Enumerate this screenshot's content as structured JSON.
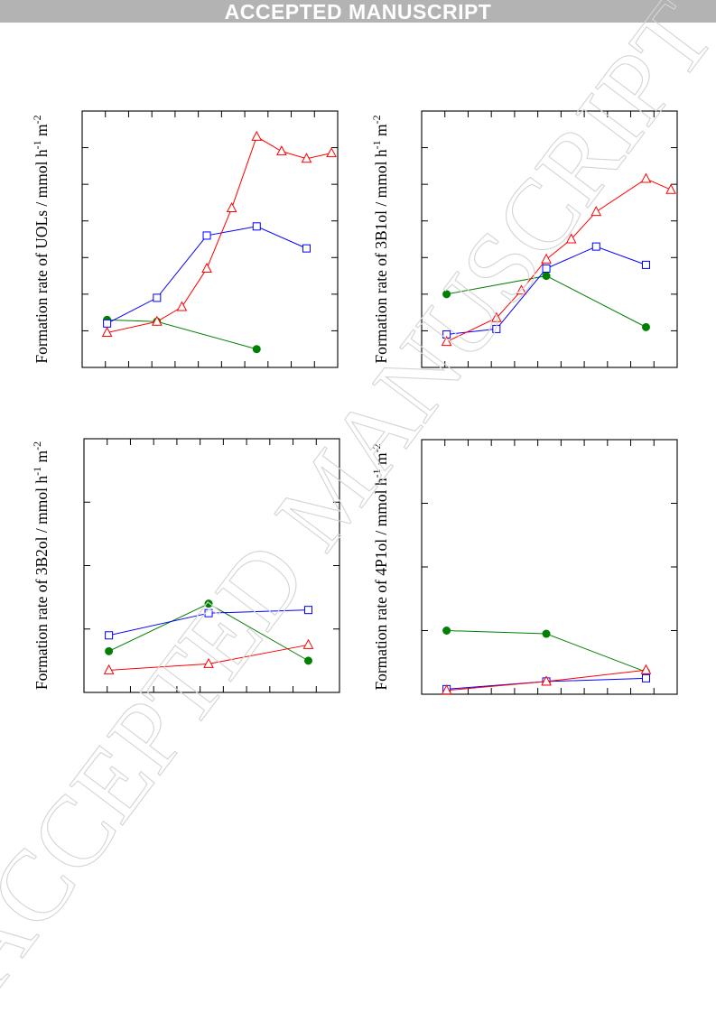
{
  "banner": {
    "text": "ACCEPTED MANUSCRIPT"
  },
  "watermark": {
    "text": "ACCEPTED MANUSCRIPT"
  },
  "colors": {
    "series_a": "#008000",
    "series_b": "#0000ff",
    "series_c": "#ff0000"
  },
  "chart_data": [
    {
      "type": "line",
      "title": "",
      "ylabel": "Formation rate of UOLs / mmol h-1 m-2",
      "xlabel": "",
      "xlim": [
        0,
        100
      ],
      "ylim": [
        0,
        7
      ],
      "grid": false,
      "series": [
        {
          "marker": "circle",
          "color": "#008000",
          "points": [
            [
              11.0,
              1.3
            ],
            [
              33.0,
              1.25
            ],
            [
              77.0,
              0.5
            ]
          ]
        },
        {
          "marker": "square",
          "color": "#0000ff",
          "points": [
            [
              11.0,
              1.2
            ],
            [
              33.0,
              1.9
            ],
            [
              55.0,
              3.6
            ],
            [
              77.0,
              3.85
            ],
            [
              99.0,
              3.25
            ]
          ]
        },
        {
          "marker": "triangle",
          "color": "#ff0000",
          "points": [
            [
              11.0,
              0.95
            ],
            [
              33.0,
              1.25
            ],
            [
              44.0,
              1.65
            ],
            [
              55.0,
              2.7
            ],
            [
              66.0,
              4.35
            ],
            [
              77.0,
              6.3
            ],
            [
              88.0,
              5.9
            ],
            [
              99.0,
              5.7
            ],
            [
              110.0,
              5.85
            ]
          ]
        }
      ]
    },
    {
      "type": "line",
      "title": "",
      "ylabel": "Formation rate of 3B1ol / mmol h-1 m-2",
      "xlabel": "",
      "xlim": [
        0,
        100
      ],
      "ylim": [
        0,
        7
      ],
      "grid": false,
      "series": [
        {
          "marker": "circle",
          "color": "#008000",
          "points": [
            [
              11.0,
              2.0
            ],
            [
              55.0,
              2.5
            ],
            [
              99.0,
              1.1
            ]
          ]
        },
        {
          "marker": "square",
          "color": "#0000ff",
          "points": [
            [
              11.0,
              0.9
            ],
            [
              33.0,
              1.05
            ],
            [
              55.0,
              2.7
            ],
            [
              77.0,
              3.3
            ],
            [
              99.0,
              2.8
            ]
          ]
        },
        {
          "marker": "triangle",
          "color": "#ff0000",
          "points": [
            [
              11.0,
              0.7
            ],
            [
              33.0,
              1.35
            ],
            [
              44.0,
              2.1
            ],
            [
              55.0,
              2.95
            ],
            [
              66.0,
              3.5
            ],
            [
              77.0,
              4.25
            ],
            [
              99.0,
              5.15
            ],
            [
              110.0,
              4.85
            ]
          ]
        }
      ]
    },
    {
      "type": "line",
      "title": "",
      "ylabel": "Formation rate of 3B2ol / mmol h-1 m-2",
      "xlabel": "",
      "xlim": [
        0,
        100
      ],
      "ylim": [
        0,
        4
      ],
      "grid": false,
      "series": [
        {
          "marker": "circle",
          "color": "#008000",
          "points": [
            [
              11.0,
              0.65
            ],
            [
              55.0,
              1.4
            ],
            [
              99.0,
              0.5
            ]
          ]
        },
        {
          "marker": "square",
          "color": "#0000ff",
          "points": [
            [
              11.0,
              0.9
            ],
            [
              55.0,
              1.25
            ],
            [
              99.0,
              1.3
            ]
          ]
        },
        {
          "marker": "triangle",
          "color": "#ff0000",
          "points": [
            [
              11.0,
              0.35
            ],
            [
              55.0,
              0.45
            ],
            [
              99.0,
              0.75
            ]
          ]
        }
      ]
    },
    {
      "type": "line",
      "title": "",
      "ylabel": "Formation rate of 4P1ol / mmol h-1 m-2",
      "xlabel": "",
      "xlim": [
        0,
        100
      ],
      "ylim": [
        0,
        4
      ],
      "grid": false,
      "series": [
        {
          "marker": "circle",
          "color": "#008000",
          "points": [
            [
              11.0,
              1.0
            ],
            [
              55.0,
              0.95
            ],
            [
              99.0,
              0.35
            ]
          ]
        },
        {
          "marker": "square",
          "color": "#0000ff",
          "points": [
            [
              11.0,
              0.08
            ],
            [
              55.0,
              0.2
            ],
            [
              99.0,
              0.25
            ]
          ]
        },
        {
          "marker": "triangle",
          "color": "#ff0000",
          "points": [
            [
              11.0,
              0.06
            ],
            [
              55.0,
              0.2
            ],
            [
              99.0,
              0.38
            ]
          ]
        }
      ]
    }
  ]
}
